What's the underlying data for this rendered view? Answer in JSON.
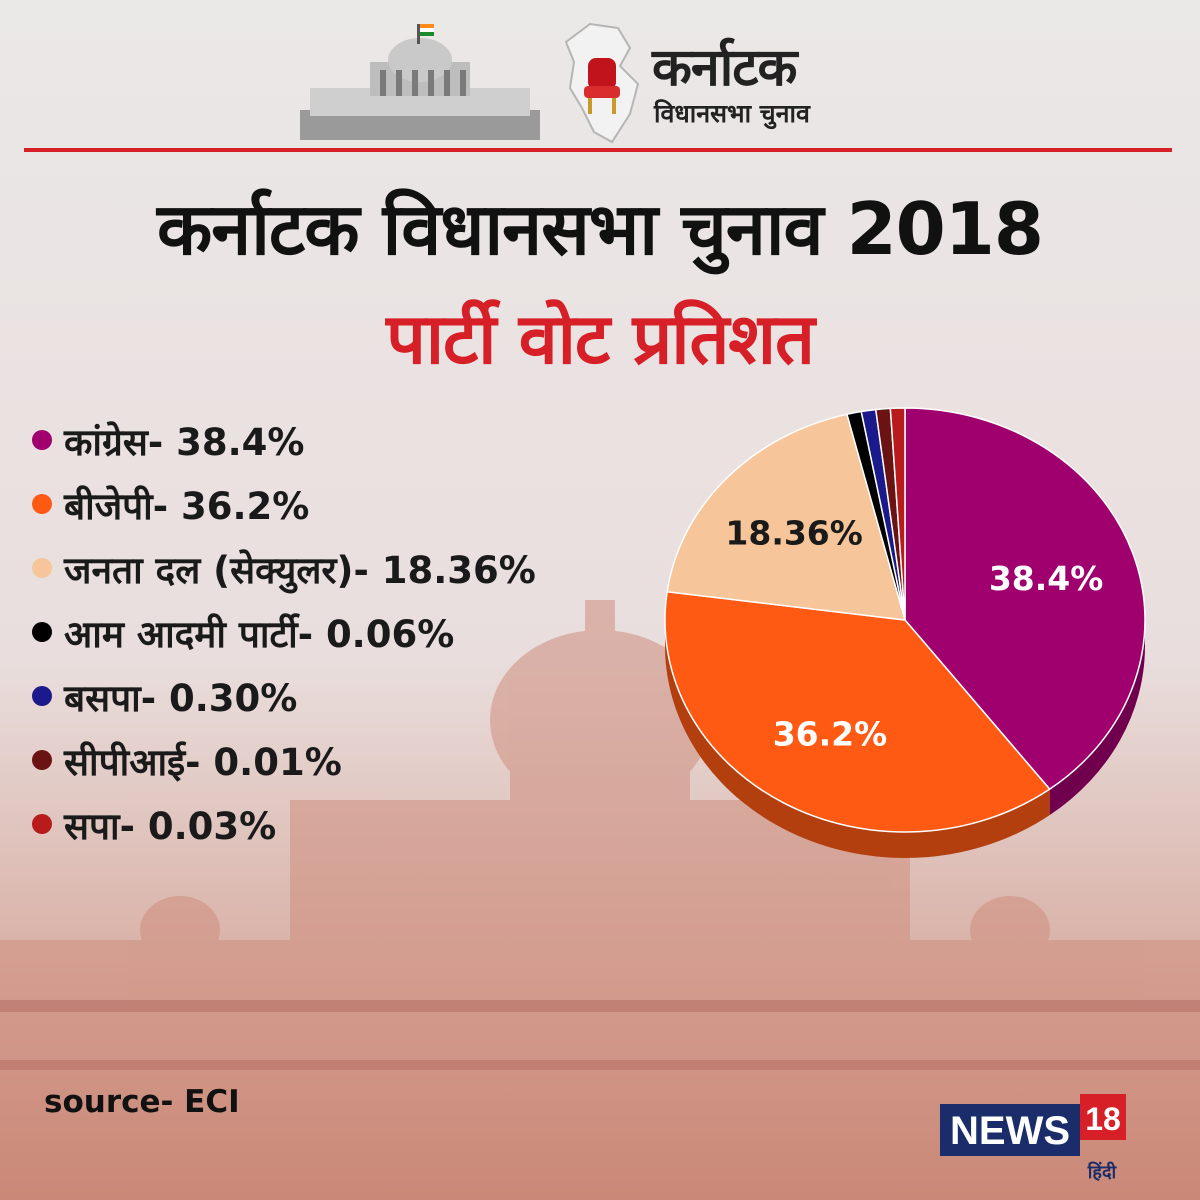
{
  "header": {
    "brand_main": "कर्नाटक",
    "brand_sub": "विधानसभा चुनाव"
  },
  "title": "कर्नाटक विधानसभा चुनाव 2018",
  "subtitle": "पार्टी वोट प्रतिशत",
  "legend": [
    {
      "label": "कांग्रेस- 38.4%",
      "color": "#a0006e"
    },
    {
      "label": "बीजेपी- 36.2%",
      "color": "#ff5a14"
    },
    {
      "label": "जनता दल (सेक्युलर)- 18.36%",
      "color": "#f7c59a"
    },
    {
      "label": "आम आदमी पार्टी- 0.06%",
      "color": "#000000"
    },
    {
      "label": "बसपा- 0.30%",
      "color": "#1a1a8c"
    },
    {
      "label": "सीपीआई- 0.01%",
      "color": "#6b1212"
    },
    {
      "label": "सपा- 0.03%",
      "color": "#b81b1b"
    }
  ],
  "chart_data": {
    "type": "pie",
    "categories": [
      "कांग्रेस",
      "बीजेपी",
      "जनता दल (सेक्युलर)",
      "आम आदमी पार्टी",
      "बसपा",
      "सीपीआई",
      "सपा"
    ],
    "values": [
      38.4,
      36.2,
      18.36,
      0.06,
      0.3,
      0.01,
      0.03
    ],
    "labels": [
      "38.4%",
      "36.2%",
      "18.36%"
    ],
    "colors": [
      "#a0006e",
      "#ff5a14",
      "#f7c59a",
      "#000000",
      "#1a1a8c",
      "#6b1212",
      "#b81b1b"
    ]
  },
  "source": "source- ECI",
  "news_logo": {
    "text": "NEWS",
    "number": "18",
    "sub": "हिंदी"
  }
}
